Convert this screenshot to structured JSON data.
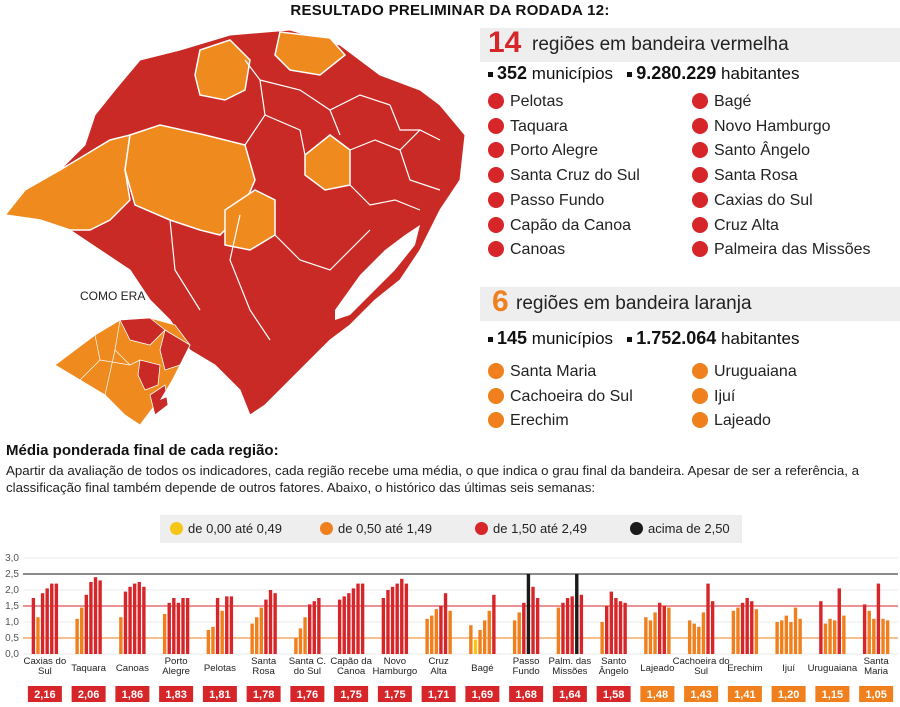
{
  "title": "RESULTADO PRELIMINAR DA RODADA 12:",
  "colors": {
    "yellow": "#f5c518",
    "orange": "#f07f1d",
    "red": "#d7262a",
    "black": "#1a1a1a",
    "map_red": "#c92a26",
    "map_orange": "#ef8a1e"
  },
  "red_section": {
    "count": "14",
    "label": "regiões em bandeira vermelha",
    "municipios_value": "352",
    "municipios_label": "municípios",
    "habitantes_value": "9.280.229",
    "habitantes_label": "habitantes",
    "regions_left": [
      "Pelotas",
      "Taquara",
      "Porto Alegre",
      "Santa Cruz do Sul",
      "Passo Fundo",
      "Capão da Canoa",
      "Canoas"
    ],
    "regions_right": [
      "Bagé",
      "Novo Hamburgo",
      "Santo Ângelo",
      "Santa Rosa",
      "Caxias do Sul",
      "Cruz Alta",
      "Palmeira das Missões"
    ]
  },
  "orange_section": {
    "count": "6",
    "label": "regiões em bandeira laranja",
    "municipios_value": "145",
    "municipios_label": "municípios",
    "habitantes_value": "1.752.064",
    "habitantes_label": "habitantes",
    "regions_left": [
      "Santa Maria",
      "Cachoeira do Sul",
      "Erechim"
    ],
    "regions_right": [
      "Uruguaiana",
      "Ijuí",
      "Lajeado"
    ]
  },
  "map": {
    "inset_label": "COMO ERA"
  },
  "average": {
    "title": "Média ponderada final de cada região:",
    "description": "Apartir da avaliação de todos os indicadores, cada região recebe uma média, o que indica o grau final da bandeira. Apesar de ser a referência, a classificação final também depende de outros fatores. Abaixo, o histórico das últimas seis semanas:"
  },
  "legend": [
    {
      "label": "de 0,00 até 0,49",
      "color": "#f5c518"
    },
    {
      "label": "de 0,50 até 1,49",
      "color": "#f07f1d"
    },
    {
      "label": "de 1,50 até 2,49",
      "color": "#d7262a"
    },
    {
      "label": "acima de 2,50",
      "color": "#1a1a1a"
    }
  ],
  "chart_data": {
    "type": "bar",
    "ylim": [
      0,
      3.0
    ],
    "yticks": [
      "0,0",
      "0,5",
      "1,0",
      "1,5",
      "2,0",
      "2,5",
      "3,0"
    ],
    "threshold_lines": [
      {
        "value": 0.5,
        "color": "#f07f1d"
      },
      {
        "value": 1.5,
        "color": "#d7262a"
      },
      {
        "value": 2.5,
        "color": "#1a1a1a"
      }
    ],
    "groups": [
      {
        "name": "Caxias do Sul",
        "values": [
          1.75,
          1.15,
          1.9,
          2.05,
          2.2,
          2.2
        ],
        "final": "2,16",
        "final_color": "#d7262a"
      },
      {
        "name": "Taquara",
        "values": [
          1.1,
          1.45,
          1.85,
          2.25,
          2.4,
          2.3
        ],
        "final": "2,06",
        "final_color": "#d7262a"
      },
      {
        "name": "Canoas",
        "values": [
          1.15,
          1.95,
          2.1,
          2.2,
          2.25,
          2.1
        ],
        "final": "1,86",
        "final_color": "#d7262a"
      },
      {
        "name": "Porto Alegre",
        "values": [
          1.25,
          1.6,
          1.75,
          1.6,
          1.75,
          1.75
        ],
        "final": "1,83",
        "final_color": "#d7262a"
      },
      {
        "name": "Pelotas",
        "values": [
          0.75,
          0.85,
          1.75,
          1.35,
          1.8,
          1.8
        ],
        "final": "1,81",
        "final_color": "#d7262a"
      },
      {
        "name": "Santa Rosa",
        "values": [
          0.95,
          1.15,
          1.45,
          1.7,
          2.0,
          1.9
        ],
        "final": "1,78",
        "final_color": "#d7262a"
      },
      {
        "name": "Santa C. do Sul",
        "values": [
          0.5,
          0.8,
          1.15,
          1.55,
          1.65,
          1.75
        ],
        "final": "1,76",
        "final_color": "#d7262a"
      },
      {
        "name": "Capão da Canoa",
        "values": [
          1.7,
          1.8,
          1.9,
          2.05,
          2.2,
          2.2
        ],
        "final": "1,75",
        "final_color": "#d7262a"
      },
      {
        "name": "Novo Hamburgo",
        "values": [
          1.75,
          2.0,
          2.1,
          2.2,
          2.35,
          2.2
        ],
        "final": "1,75",
        "final_color": "#d7262a"
      },
      {
        "name": "Cruz Alta",
        "values": [
          1.1,
          1.2,
          1.4,
          1.5,
          1.9,
          1.35
        ],
        "final": "1,71",
        "final_color": "#d7262a"
      },
      {
        "name": "Bagé",
        "values": [
          0.9,
          0.45,
          0.75,
          1.05,
          1.35,
          1.85
        ],
        "final": "1,69",
        "final_color": "#d7262a"
      },
      {
        "name": "Passo Fundo",
        "values": [
          1.05,
          1.3,
          1.6,
          2.5,
          2.1,
          1.75
        ],
        "final": "1,68",
        "final_color": "#d7262a"
      },
      {
        "name": "Palm. das Missões",
        "values": [
          1.45,
          1.6,
          1.75,
          1.8,
          2.5,
          1.85
        ],
        "final": "1,64",
        "final_color": "#d7262a"
      },
      {
        "name": "Santo Ângelo",
        "values": [
          1.0,
          1.5,
          1.95,
          1.75,
          1.65,
          1.6
        ],
        "final": "1,58",
        "final_color": "#d7262a"
      },
      {
        "name": "Lajeado",
        "values": [
          1.15,
          1.05,
          1.3,
          1.6,
          1.5,
          1.45
        ],
        "final": "1,48",
        "final_color": "#f07f1d"
      },
      {
        "name": "Cachoeira do Sul",
        "values": [
          1.05,
          0.95,
          0.85,
          1.3,
          2.2,
          1.65
        ],
        "final": "1,43",
        "final_color": "#f07f1d"
      },
      {
        "name": "Erechim",
        "values": [
          1.35,
          1.45,
          1.6,
          1.75,
          1.65,
          1.4
        ],
        "final": "1,41",
        "final_color": "#f07f1d"
      },
      {
        "name": "Ijuí",
        "values": [
          1.0,
          1.05,
          1.2,
          1.0,
          1.45,
          1.1
        ],
        "final": "1,20",
        "final_color": "#f07f1d"
      },
      {
        "name": "Uruguaiana",
        "values": [
          1.65,
          0.95,
          1.1,
          1.05,
          2.05,
          1.2
        ],
        "final": "1,15",
        "final_color": "#f07f1d"
      },
      {
        "name": "Santa Maria",
        "values": [
          1.55,
          1.35,
          1.1,
          2.2,
          1.1,
          1.05
        ],
        "final": "1,05",
        "final_color": "#f07f1d"
      }
    ]
  }
}
